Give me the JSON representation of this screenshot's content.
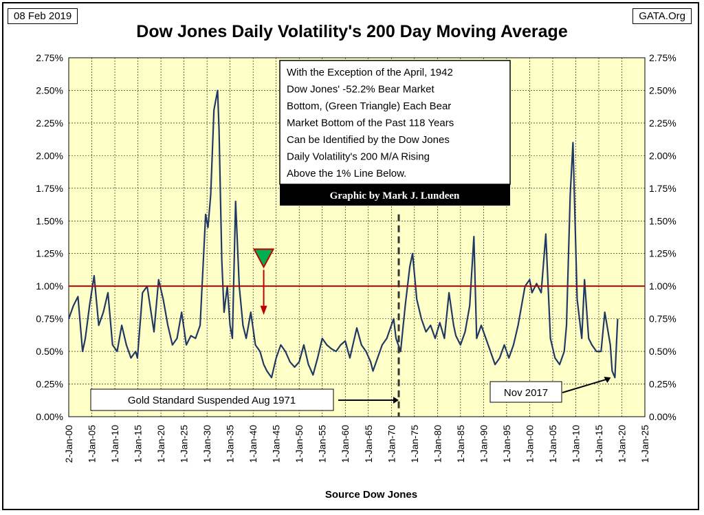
{
  "header": {
    "date": "08 Feb 2019",
    "site": "GATA.Org",
    "title": "Dow Jones Daily Volatility's 200 Day Moving Average"
  },
  "chart_data": {
    "type": "line",
    "title": "Dow Jones Daily Volatility's 200 Day Moving Average",
    "xlabel": "Source Dow Jones",
    "ylabel": "",
    "x_tick_labels": [
      "2-Jan-00",
      "1-Jan-05",
      "1-Jan-10",
      "1-Jan-15",
      "1-Jan-20",
      "1-Jan-25",
      "1-Jan-30",
      "1-Jan-35",
      "1-Jan-40",
      "1-Jan-45",
      "1-Jan-50",
      "1-Jan-55",
      "1-Jan-60",
      "1-Jan-65",
      "1-Jan-70",
      "1-Jan-75",
      "1-Jan-80",
      "1-Jan-85",
      "1-Jan-90",
      "1-Jan-95",
      "1-Jan-00",
      "1-Jan-05",
      "1-Jan-10",
      "1-Jan-15",
      "1-Jan-20",
      "1-Jan-25"
    ],
    "y_tick_labels": [
      "0.00%",
      "0.25%",
      "0.50%",
      "0.75%",
      "1.00%",
      "1.25%",
      "1.50%",
      "1.75%",
      "2.00%",
      "2.25%",
      "2.50%",
      "2.75%"
    ],
    "xlim": [
      1900,
      2025
    ],
    "ylim": [
      0,
      2.75
    ],
    "y_unit": "%",
    "grid": true,
    "background_color": "#ffffc8",
    "line_color": "#1f3864",
    "series": [
      {
        "x": [
          1900.0,
          1901.0,
          1902.0,
          1903.0,
          1903.6,
          1904.5,
          1905.5,
          1906.5,
          1907.5,
          1908.5,
          1909.5,
          1910.5,
          1911.5,
          1912.5,
          1913.5,
          1914.5,
          1914.9,
          1916.0,
          1917.0,
          1918.5,
          1919.5,
          1920.5,
          1921.5,
          1922.5,
          1923.5,
          1924.5,
          1925.5,
          1926.5,
          1927.5,
          1928.5,
          1929.7,
          1930.2,
          1930.8,
          1931.5,
          1932.3,
          1932.6,
          1933.2,
          1933.7,
          1934.4,
          1935.0,
          1935.5,
          1936.2,
          1937.0,
          1937.8,
          1938.5,
          1939.5,
          1940.5,
          1941.5,
          1942.3,
          1943.0,
          1944.0,
          1945.0,
          1946.0,
          1947.0,
          1948.0,
          1949.0,
          1950.0,
          1951.0,
          1952.0,
          1953.0,
          1954.0,
          1955.0,
          1956.0,
          1957.0,
          1958.0,
          1959.0,
          1960.0,
          1961.0,
          1962.5,
          1963.5,
          1964.5,
          1965.5,
          1966.0,
          1967.0,
          1968.0,
          1969.0,
          1970.5,
          1971.0,
          1972.0,
          1973.0,
          1974.0,
          1974.6,
          1975.5,
          1976.5,
          1977.5,
          1978.5,
          1979.5,
          1980.5,
          1981.5,
          1982.5,
          1983.5,
          1984.0,
          1985.0,
          1986.0,
          1987.0,
          1987.9,
          1988.5,
          1989.5,
          1990.5,
          1991.5,
          1992.5,
          1993.5,
          1994.5,
          1995.5,
          1996.5,
          1997.5,
          1998.5,
          1999.0,
          2000.0,
          2000.5,
          2001.5,
          2002.5,
          2003.5,
          2004.5,
          2005.5,
          2006.5,
          2007.5,
          2008.0,
          2008.8,
          2009.4,
          2010.3,
          2011.3,
          2011.9,
          2012.8,
          2013.5,
          2014.5,
          2015.5,
          2016.3,
          2017.5,
          2017.9,
          2018.5,
          2019.1
        ],
        "y": [
          0.75,
          0.85,
          0.92,
          0.5,
          0.6,
          0.85,
          1.08,
          0.7,
          0.8,
          0.95,
          0.55,
          0.5,
          0.7,
          0.55,
          0.45,
          0.5,
          0.45,
          0.95,
          1.0,
          0.65,
          1.05,
          0.9,
          0.7,
          0.55,
          0.6,
          0.8,
          0.55,
          0.62,
          0.6,
          0.7,
          1.55,
          1.45,
          1.7,
          2.35,
          2.5,
          2.2,
          1.2,
          0.8,
          1.0,
          0.7,
          0.6,
          1.65,
          1.0,
          0.7,
          0.6,
          0.8,
          0.55,
          0.5,
          0.4,
          0.35,
          0.3,
          0.45,
          0.55,
          0.5,
          0.42,
          0.38,
          0.42,
          0.55,
          0.4,
          0.32,
          0.45,
          0.6,
          0.55,
          0.52,
          0.5,
          0.55,
          0.58,
          0.45,
          0.68,
          0.55,
          0.5,
          0.42,
          0.35,
          0.45,
          0.55,
          0.6,
          0.75,
          0.6,
          0.5,
          0.85,
          1.15,
          1.25,
          0.9,
          0.75,
          0.65,
          0.7,
          0.6,
          0.72,
          0.6,
          0.95,
          0.7,
          0.62,
          0.55,
          0.65,
          0.85,
          1.38,
          0.6,
          0.7,
          0.6,
          0.5,
          0.4,
          0.45,
          0.55,
          0.45,
          0.55,
          0.7,
          0.9,
          1.0,
          1.05,
          0.95,
          1.02,
          0.95,
          1.4,
          0.6,
          0.45,
          0.4,
          0.5,
          0.7,
          1.7,
          2.1,
          0.9,
          0.6,
          1.05,
          0.6,
          0.55,
          0.5,
          0.5,
          0.8,
          0.55,
          0.35,
          0.3,
          0.75
        ]
      }
    ],
    "reference_line": {
      "y": 1.0,
      "color": "#c00000"
    },
    "vertical_marker": {
      "x": 1971.6,
      "style": "dashed"
    },
    "marker_triangle": {
      "x": 1942.3,
      "y": 1.22,
      "color": "#00b050"
    },
    "annotations": {
      "main_note": [
        "With the Exception of the April, 1942",
        "Dow Jones' -52.2% Bear Market",
        "Bottom, (Green Triangle) Each Bear",
        "Market Bottom of the Past 118 Years",
        "Can be Identified by the Dow Jones",
        "Daily Volatility's 200 M/A Rising",
        "Above the 1% Line Below."
      ],
      "credit": "Graphic by Mark J. Lundeen",
      "gold_note": "Gold Standard Suspended Aug 1971",
      "nov_note": "Nov 2017"
    }
  }
}
